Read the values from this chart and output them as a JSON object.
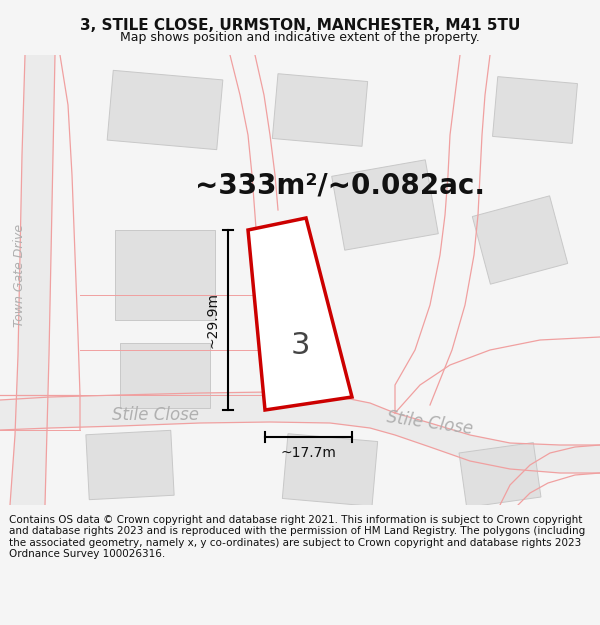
{
  "title": "3, STILE CLOSE, URMSTON, MANCHESTER, M41 5TU",
  "subtitle": "Map shows position and indicative extent of the property.",
  "area_label": "~333m²/~0.082ac.",
  "width_label": "~17.7m",
  "height_label": "~29.9m",
  "property_number": "3",
  "footer_text": "Contains OS data © Crown copyright and database right 2021. This information is subject to Crown copyright and database rights 2023 and is reproduced with the permission of HM Land Registry. The polygons (including the associated geometry, namely x, y co-ordinates) are subject to Crown copyright and database rights 2023 Ordnance Survey 100026316.",
  "bg_color": "#f5f5f5",
  "map_bg": "#ffffff",
  "building_color": "#e0e0e0",
  "building_edge": "#c8c8c8",
  "property_outline_color": "#cc0000",
  "pink_road_color": "#f0a0a0",
  "road_fill_color": "#ebebeb",
  "dim_line_color": "#111111",
  "text_color": "#111111",
  "road_label_color": "#b0b0b0",
  "title_fontsize": 11,
  "subtitle_fontsize": 9,
  "area_fontsize": 20,
  "dim_fontsize": 10,
  "road_label_fontsize": 12,
  "footer_fontsize": 7.5,
  "town_gate_fontsize": 9
}
